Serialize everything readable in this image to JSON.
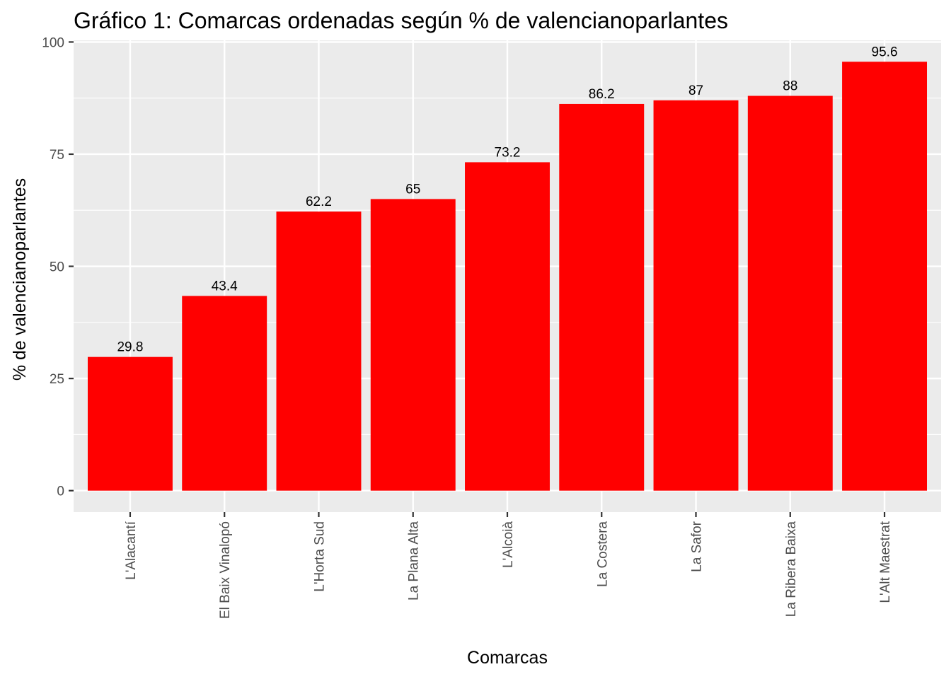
{
  "chart_data": {
    "type": "bar",
    "title": "Gráfico 1:  Comarcas ordenadas según % de valencianoparlantes",
    "xlabel": "Comarcas",
    "ylabel": "% de valencianoparlantes",
    "categories": [
      "L'Alacantí",
      "El Baix Vinalopó",
      "L'Horta Sud",
      "La Plana Alta",
      "L'Alcoià",
      "La Costera",
      "La Safor",
      "La Ribera Baixa",
      "L'Alt Maestrat"
    ],
    "values": [
      29.8,
      43.4,
      62.2,
      65,
      73.2,
      86.2,
      87,
      88,
      95.6
    ],
    "value_labels": [
      "29.8",
      "43.4",
      "62.2",
      "65",
      "73.2",
      "86.2",
      "87",
      "88",
      "95.6"
    ],
    "ylim": [
      -4.78,
      100.38
    ],
    "yticks": [
      0,
      25,
      50,
      75,
      100
    ],
    "grid": true,
    "legend": "none",
    "colors": {
      "bar": "#ff0000",
      "panel": "#ebebeb",
      "grid": "#ffffff"
    }
  }
}
